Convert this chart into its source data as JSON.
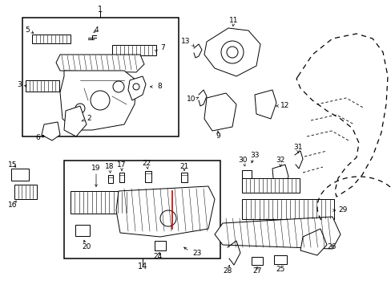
{
  "bg_color": "#ffffff",
  "line_color": "#000000",
  "red_color": "#cc0000",
  "fig_width": 4.89,
  "fig_height": 3.6,
  "dpi": 100
}
